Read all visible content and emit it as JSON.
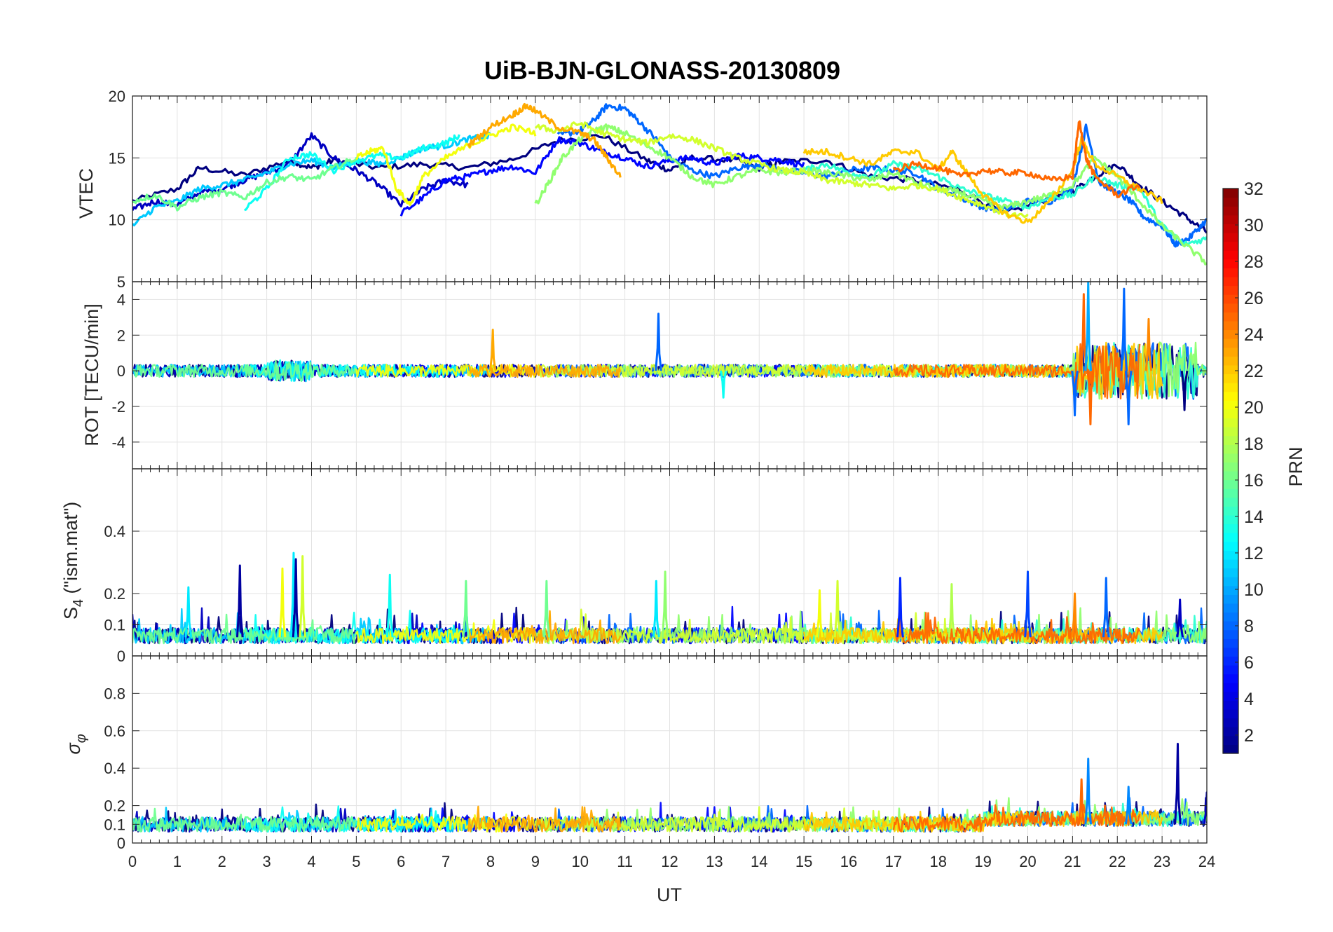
{
  "chart_data": {
    "type": "line",
    "title": "UiB-BJN-GLONASS-20130809",
    "xlabel": "UT",
    "xlim": [
      0,
      24
    ],
    "xticks": [
      0,
      1,
      2,
      3,
      4,
      5,
      6,
      7,
      8,
      9,
      10,
      11,
      12,
      13,
      14,
      15,
      16,
      17,
      18,
      19,
      20,
      21,
      22,
      23,
      24
    ],
    "colormap": "jet",
    "colorbar": {
      "label": "PRN",
      "range": [
        1,
        32
      ],
      "ticks": [
        2,
        4,
        6,
        8,
        10,
        12,
        14,
        16,
        18,
        20,
        22,
        24,
        26,
        28,
        30,
        32
      ]
    },
    "panels": [
      {
        "name": "vtec",
        "ylabel": "VTEC",
        "ylim": [
          5,
          20
        ],
        "yticks": [
          5,
          10,
          15,
          20
        ],
        "series": [
          {
            "prn": 1,
            "x": [
              0,
              1,
              1.5,
              2.5,
              3.5,
              4,
              4.5,
              5.5,
              6.5,
              7.5,
              8.5,
              9.5,
              10.5,
              11.5,
              12,
              12.5,
              13.5,
              14,
              14.5,
              15.5,
              16.5,
              17.5,
              18.5,
              19.5,
              20.5,
              21,
              21.5,
              22,
              22.5,
              23,
              23.5,
              24
            ],
            "y": [
              11.5,
              12.5,
              14.2,
              13.6,
              14.8,
              14.2,
              14.8,
              14.2,
              14.5,
              14.2,
              14.9,
              16.4,
              16.8,
              14.8,
              14.0,
              15.0,
              14.8,
              14.2,
              14.7,
              14.8,
              13.5,
              13.2,
              12.4,
              10.5,
              11.8,
              12.3,
              13.5,
              14.5,
              12.8,
              11.5,
              10.3,
              9.0
            ]
          },
          {
            "prn": 3,
            "x": [
              0,
              0.5,
              1,
              1.5,
              2,
              2.5,
              3,
              3.5,
              4,
              4.5,
              5,
              5.5,
              6,
              6.5,
              7,
              7.5
            ],
            "y": [
              10.8,
              11.5,
              11.2,
              12.2,
              12.5,
              13.2,
              13.8,
              14.5,
              16.8,
              15.0,
              14.0,
              12.8,
              11.2,
              12.5,
              13.2,
              12.8
            ]
          },
          {
            "prn": 5,
            "x": [
              6,
              6.5,
              7,
              7.5,
              8,
              8.5,
              9,
              9.5,
              10,
              10.5,
              11,
              11.5,
              12,
              12.5,
              13,
              13.5,
              14,
              14.5,
              15
            ],
            "y": [
              10.5,
              11.8,
              13.2,
              13.5,
              14.0,
              14.3,
              13.8,
              16.5,
              16.2,
              15.5,
              15.0,
              14.3,
              14.8,
              15.0,
              14.5,
              15.2,
              15.0,
              14.8,
              14.4
            ]
          },
          {
            "prn": 8,
            "x": [
              9.5,
              10,
              10.3,
              10.6,
              11,
              11.3,
              11.7,
              12,
              12.5,
              13,
              13.5,
              14,
              14.5,
              15,
              15.5,
              16,
              16.5,
              17,
              17.5,
              18,
              18.5,
              19,
              19.5,
              20,
              20.5,
              21,
              21.3,
              21.6,
              22,
              22.3,
              22.6,
              23,
              23.3,
              23.6,
              24
            ],
            "y": [
              16.8,
              17.2,
              18.0,
              19.2,
              19.0,
              18.0,
              16.5,
              15.0,
              14.0,
              13.5,
              14.2,
              14.5,
              14.0,
              13.8,
              13.5,
              14.0,
              14.2,
              14.0,
              13.8,
              12.5,
              11.8,
              11.0,
              10.8,
              11.5,
              11.5,
              12.5,
              17.5,
              13.0,
              12.2,
              11.5,
              10.2,
              9.5,
              8.0,
              8.5,
              10.0
            ]
          },
          {
            "prn": 11,
            "x": [
              0,
              0.5,
              1,
              1.5,
              2,
              2.5,
              3,
              3.5,
              4,
              4.5,
              5,
              5.5,
              6,
              6.5,
              7,
              7.5,
              8
            ],
            "y": [
              9.5,
              11.0,
              11.5,
              12.5,
              12.8,
              13.2,
              13.8,
              14.5,
              14.8,
              14.2,
              14.8,
              14.5,
              15.0,
              15.8,
              16.0,
              16.5,
              16.8
            ]
          },
          {
            "prn": 13,
            "x": [
              2.5,
              3,
              3.5,
              4,
              4.5,
              5,
              5.5,
              6,
              6.5,
              7,
              7.3
            ],
            "y": [
              10.8,
              12.5,
              15.0,
              15.3,
              14.0,
              14.8,
              15.2,
              15.0,
              15.8,
              16.2,
              16.8
            ]
          },
          {
            "prn": 14,
            "x": [
              15,
              15.5,
              16,
              16.5,
              17,
              17.5,
              18,
              18.5,
              19,
              19.5,
              20,
              20.5,
              21,
              21.5,
              22,
              22.5,
              23,
              23.5,
              24
            ],
            "y": [
              14.0,
              14.5,
              13.8,
              13.5,
              14.5,
              14.2,
              13.5,
              12.5,
              12.0,
              11.5,
              11.0,
              11.8,
              12.0,
              13.5,
              12.8,
              12.5,
              9.5,
              8.0,
              8.5
            ]
          },
          {
            "prn": 16,
            "x": [
              0,
              0.5,
              1,
              1.5,
              2,
              2.5,
              3,
              3.5,
              4,
              4.5,
              5
            ],
            "y": [
              11.5,
              12.0,
              11.0,
              11.8,
              12.2,
              11.8,
              13.0,
              13.5,
              13.2,
              14.2,
              15.0
            ]
          },
          {
            "prn": 17,
            "x": [
              9,
              9.3,
              9.6,
              10,
              10.3,
              10.6,
              11,
              11.5,
              12,
              12.5,
              13,
              13.5,
              14,
              14.5,
              15,
              15.5,
              16,
              16.5,
              17,
              17.5,
              18,
              18.5,
              19,
              19.5,
              20,
              20.5,
              21,
              21.5,
              22,
              22.5,
              23,
              23.5,
              24
            ],
            "y": [
              11.2,
              13.0,
              15.0,
              16.5,
              17.2,
              17.5,
              17.0,
              16.0,
              15.0,
              13.5,
              12.8,
              13.5,
              14.0,
              13.8,
              14.0,
              13.8,
              13.5,
              13.2,
              13.8,
              13.0,
              12.5,
              12.2,
              11.5,
              11.0,
              11.5,
              12.0,
              12.8,
              15.0,
              13.5,
              11.5,
              9.5,
              8.0,
              6.5
            ]
          },
          {
            "prn": 19,
            "x": [
              9,
              9.5,
              10,
              10.5,
              11,
              11.5,
              12,
              12.5,
              13,
              13.5,
              14,
              14.5,
              15,
              15.5,
              16,
              16.5,
              17,
              17.5,
              18,
              18.5,
              19,
              19.5,
              20
            ],
            "y": [
              17.5,
              17.2,
              17.8,
              17.0,
              16.5,
              16.2,
              16.8,
              16.5,
              15.8,
              15.0,
              14.5,
              14.0,
              13.8,
              13.2,
              13.0,
              12.8,
              12.5,
              12.8,
              12.5,
              11.8,
              11.2,
              10.5,
              10.2
            ]
          },
          {
            "prn": 20,
            "x": [
              5,
              5.3,
              5.6,
              5.9,
              6.2,
              6.5,
              7,
              7.5,
              8,
              8.5,
              9
            ],
            "y": [
              15.0,
              15.5,
              15.8,
              12.5,
              11.2,
              13.5,
              15.0,
              16.0,
              16.8,
              17.5,
              17.0
            ]
          },
          {
            "prn": 23,
            "x": [
              7.5,
              8,
              8.5,
              8.8,
              9,
              9.5,
              10,
              10.3,
              10.6,
              10.9
            ],
            "y": [
              16.0,
              17.5,
              18.5,
              19.2,
              18.8,
              17.5,
              17.0,
              16.5,
              15.0,
              13.5
            ]
          },
          {
            "prn": 22,
            "x": [
              15,
              15.5,
              16,
              16.5,
              17,
              17.5,
              18,
              18.3,
              18.6,
              19,
              19.5,
              20,
              20.5,
              21,
              21.2,
              21.5,
              22,
              22.5,
              23
            ],
            "y": [
              15.5,
              15.5,
              15.0,
              14.5,
              15.5,
              15.5,
              14.0,
              15.5,
              14.0,
              12.0,
              10.5,
              9.8,
              11.5,
              14.0,
              16.5,
              14.5,
              13.5,
              12.5,
              11.5
            ]
          },
          {
            "prn": 25,
            "x": [
              17,
              17.5,
              18,
              18.5,
              19,
              19.5,
              20,
              20.5,
              21,
              21.15,
              21.3,
              21.5,
              22,
              22.5
            ],
            "y": [
              14.0,
              14.5,
              14.2,
              13.5,
              14.0,
              13.8,
              13.8,
              13.2,
              13.5,
              18.0,
              15.0,
              13.5,
              12.0,
              12.8
            ]
          }
        ]
      },
      {
        "name": "rot",
        "ylabel": "ROT [TECU/min]",
        "ylim": [
          -5.5,
          5
        ],
        "yticks": [
          -4,
          -2,
          0,
          2,
          4
        ],
        "base_amplitude": 0.35,
        "spikes": [
          {
            "x": 8.05,
            "value": 2.3,
            "prn": 23
          },
          {
            "x": 11.75,
            "value": 3.2,
            "prn": 8
          },
          {
            "x": 13.2,
            "value": -1.5,
            "prn": 13
          },
          {
            "x": 21.05,
            "value": -2.5,
            "prn": 8
          },
          {
            "x": 21.25,
            "value": 4.3,
            "prn": 25
          },
          {
            "x": 21.35,
            "value": 5.0,
            "prn": 10
          },
          {
            "x": 21.4,
            "value": -3.0,
            "prn": 25
          },
          {
            "x": 22.15,
            "value": 4.6,
            "prn": 8
          },
          {
            "x": 22.25,
            "value": -3.0,
            "prn": 8
          },
          {
            "x": 22.7,
            "value": 2.9,
            "prn": 24
          },
          {
            "x": 23.5,
            "value": -2.2,
            "prn": 1
          }
        ]
      },
      {
        "name": "s4",
        "ylabel": "S4 (\"ism.mat\")",
        "ylim": [
          0,
          0.6
        ],
        "yticks": [
          0,
          0.1,
          0.2,
          0.4
        ],
        "baseline": 0.06,
        "spikes": [
          {
            "x": 1.25,
            "value": 0.22,
            "prn": 12
          },
          {
            "x": 2.4,
            "value": 0.29,
            "prn": 2
          },
          {
            "x": 3.35,
            "value": 0.28,
            "prn": 20
          },
          {
            "x": 3.6,
            "value": 0.33,
            "prn": 12
          },
          {
            "x": 3.65,
            "value": 0.31,
            "prn": 2
          },
          {
            "x": 3.8,
            "value": 0.32,
            "prn": 19
          },
          {
            "x": 5.75,
            "value": 0.26,
            "prn": 13
          },
          {
            "x": 7.45,
            "value": 0.24,
            "prn": 16
          },
          {
            "x": 9.25,
            "value": 0.24,
            "prn": 16
          },
          {
            "x": 11.7,
            "value": 0.24,
            "prn": 12
          },
          {
            "x": 11.9,
            "value": 0.27,
            "prn": 17
          },
          {
            "x": 15.35,
            "value": 0.21,
            "prn": 20
          },
          {
            "x": 15.75,
            "value": 0.24,
            "prn": 19
          },
          {
            "x": 17.15,
            "value": 0.25,
            "prn": 6
          },
          {
            "x": 18.3,
            "value": 0.23,
            "prn": 18
          },
          {
            "x": 20.0,
            "value": 0.27,
            "prn": 7
          },
          {
            "x": 21.05,
            "value": 0.2,
            "prn": 24
          },
          {
            "x": 21.75,
            "value": 0.25,
            "prn": 8
          },
          {
            "x": 23.4,
            "value": 0.18,
            "prn": 3
          }
        ]
      },
      {
        "name": "sigma_phi",
        "ylabel": "σφ",
        "ylim": [
          0,
          1
        ],
        "yticks": [
          0,
          0.1,
          0.2,
          0.4,
          0.6,
          0.8
        ],
        "baseline": 0.1,
        "spikes": [
          {
            "x": 21.2,
            "value": 0.34,
            "prn": 25
          },
          {
            "x": 21.35,
            "value": 0.45,
            "prn": 9
          },
          {
            "x": 22.25,
            "value": 0.3,
            "prn": 9
          },
          {
            "x": 23.35,
            "value": 0.53,
            "prn": 2
          },
          {
            "x": 24.0,
            "value": 0.27,
            "prn": 3
          }
        ]
      }
    ]
  }
}
